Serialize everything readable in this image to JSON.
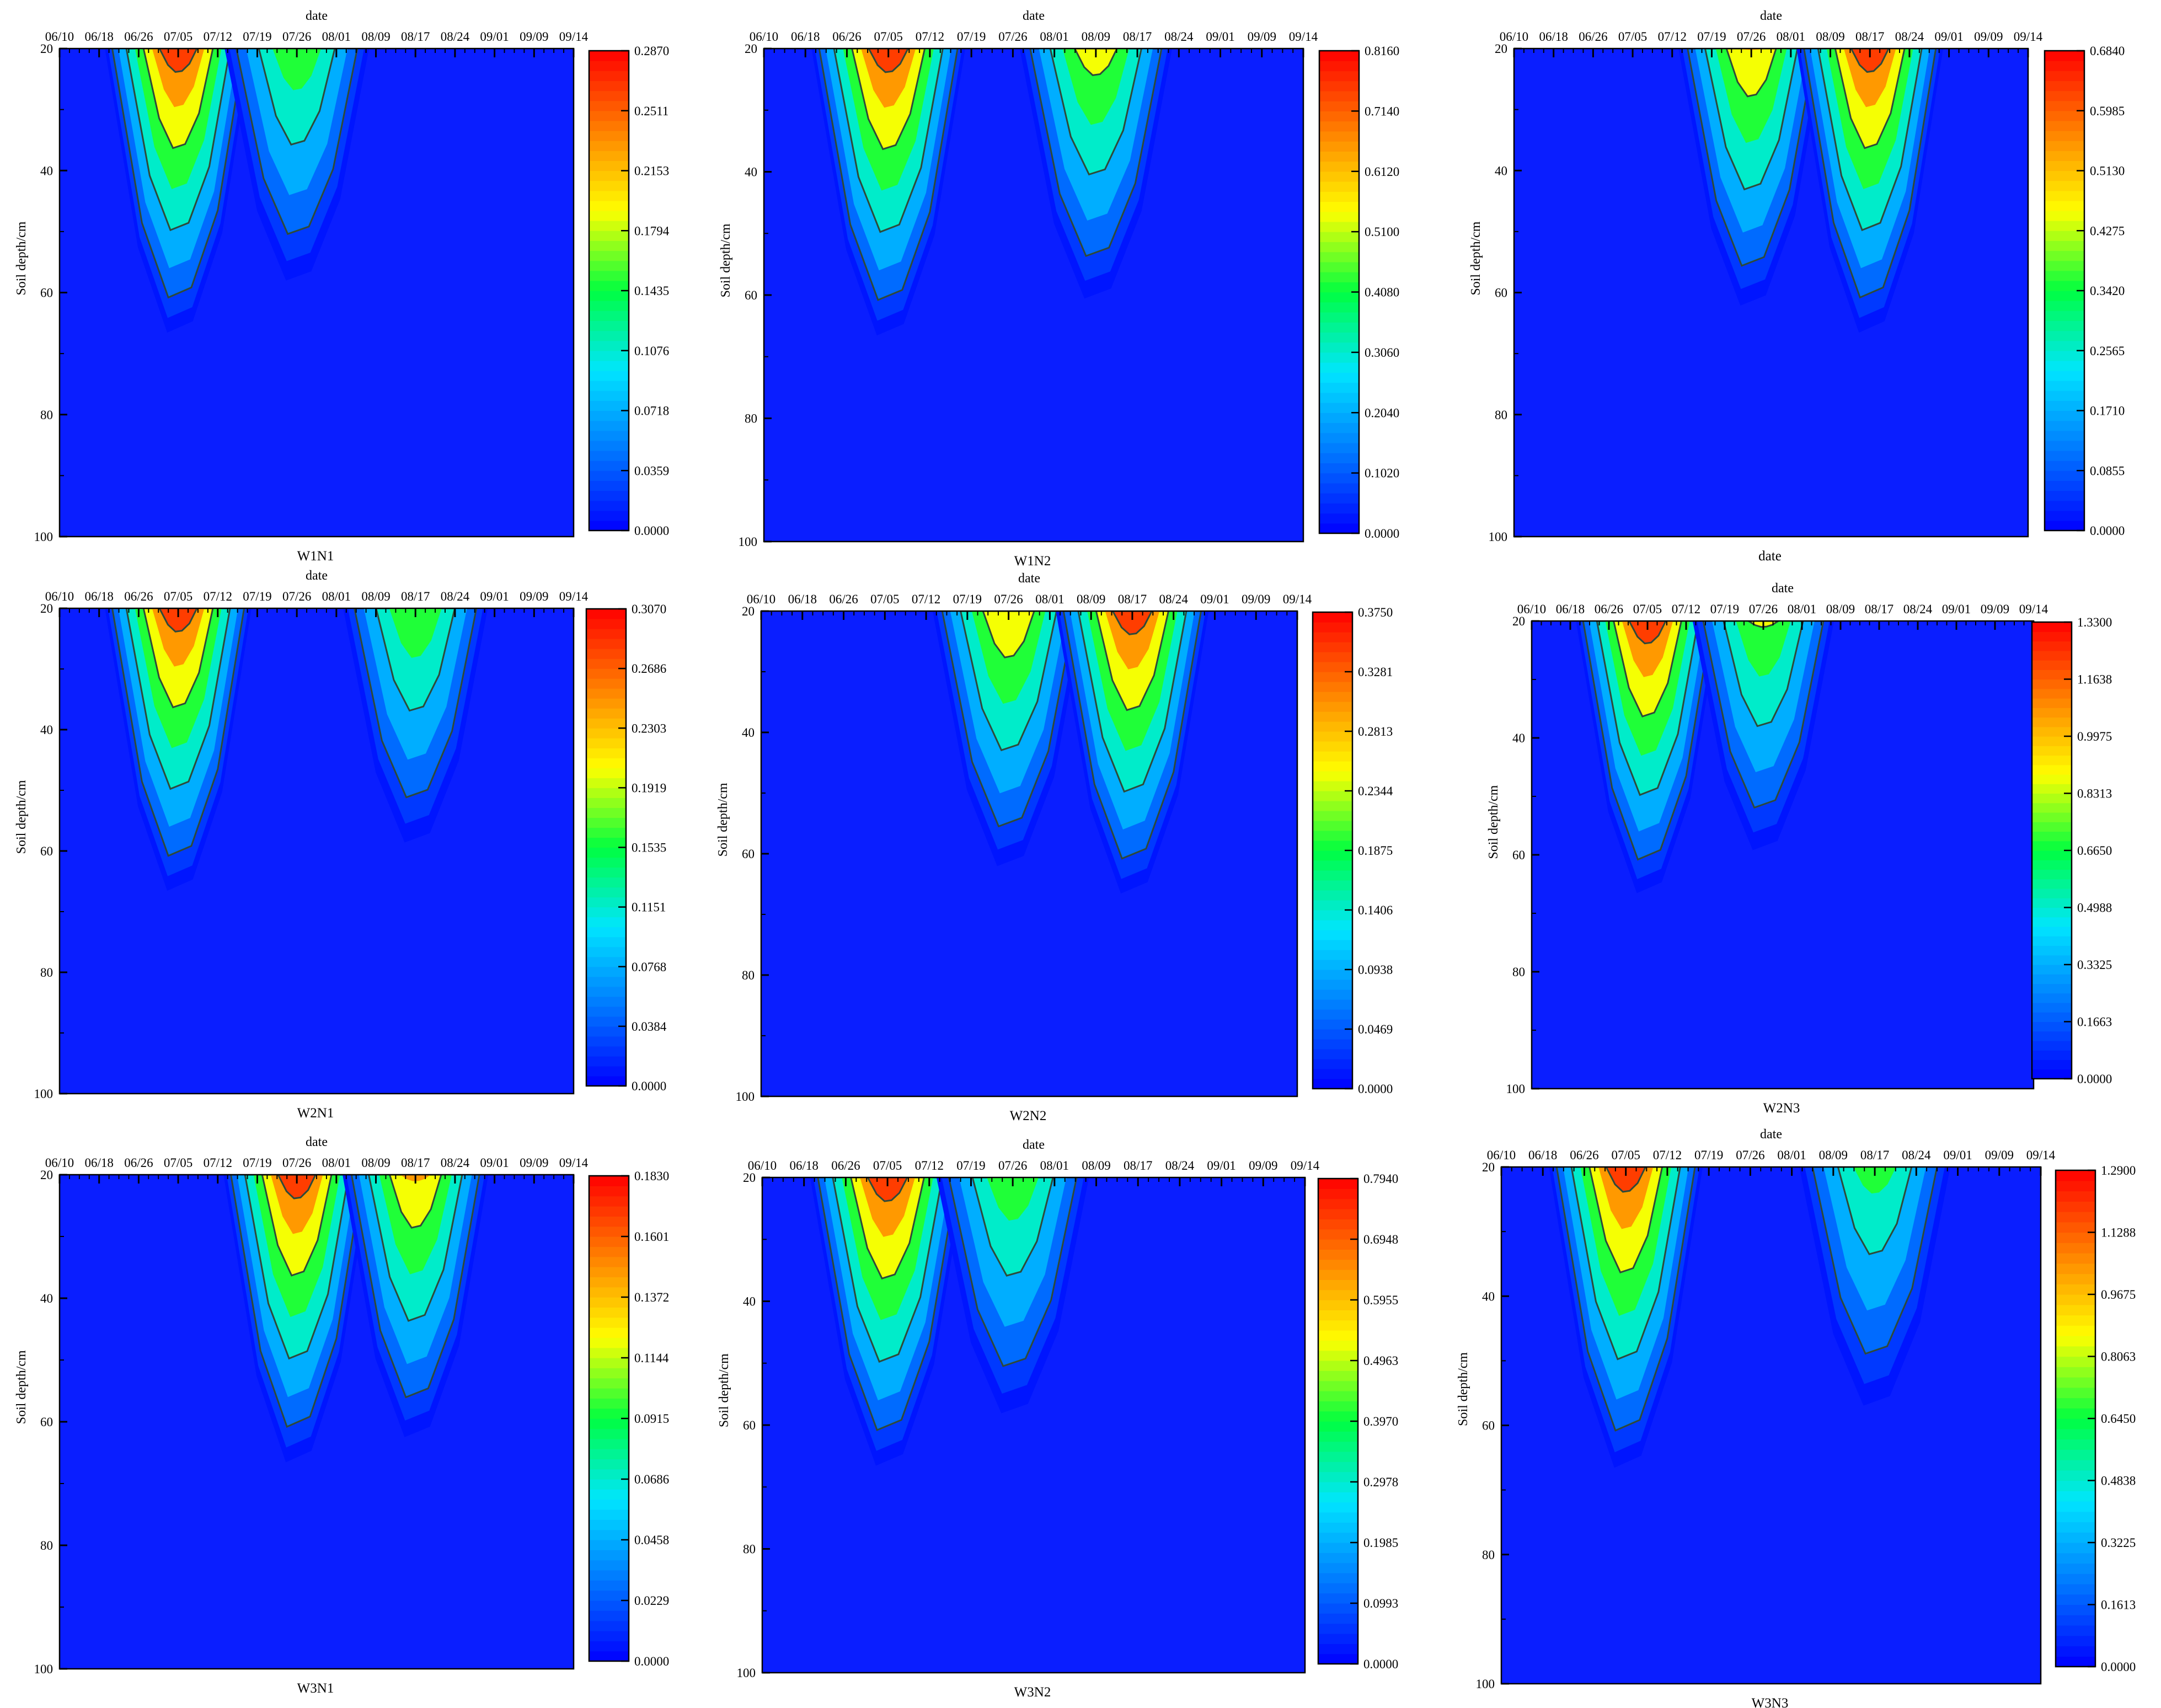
{
  "chart_data": [
    {
      "type": "heatmap",
      "title": "W1N1",
      "xlabel": "date",
      "ylabel": "Soil depth/cm",
      "x_ticks": [
        "06/10",
        "06/18",
        "06/26",
        "07/05",
        "07/12",
        "07/19",
        "07/26",
        "08/01",
        "08/09",
        "08/17",
        "08/24",
        "09/01",
        "09/09",
        "09/14"
      ],
      "y_ticks": [
        "20",
        "40",
        "60",
        "80",
        "100"
      ],
      "ylim": [
        20,
        100
      ],
      "colorbar_range": [
        0,
        0.287
      ],
      "colorbar_ticks": [
        "0.2870",
        "0.2511",
        "0.2153",
        "0.1794",
        "0.1435",
        "0.1076",
        "0.0718",
        "0.0359",
        "0.0000"
      ],
      "hotspots": [
        {
          "date": "07/05",
          "peak_depth": 20,
          "peak_value": 0.287
        },
        {
          "date": "07/26",
          "peak_depth": 20,
          "peak_value": 0.18
        }
      ]
    },
    {
      "type": "heatmap",
      "title": "W1N2",
      "xlabel": "date",
      "ylabel": "Soil depth/cm",
      "x_ticks": [
        "06/10",
        "06/18",
        "06/26",
        "07/05",
        "07/12",
        "07/19",
        "07/26",
        "08/01",
        "08/09",
        "08/17",
        "08/24",
        "09/01",
        "09/09",
        "09/14"
      ],
      "y_ticks": [
        "20",
        "40",
        "60",
        "80",
        "100"
      ],
      "ylim": [
        20,
        100
      ],
      "colorbar_range": [
        0,
        0.816
      ],
      "colorbar_ticks": [
        "0.8160",
        "0.7140",
        "0.6120",
        "0.5100",
        "0.4080",
        "0.3060",
        "0.2040",
        "0.1020",
        "0.0000"
      ],
      "hotspots": [
        {
          "date": "07/05",
          "peak_depth": 20,
          "peak_value": 0.816
        },
        {
          "date": "08/09",
          "peak_depth": 20,
          "peak_value": 0.6
        }
      ]
    },
    {
      "type": "heatmap",
      "title": "date",
      "xlabel": "date",
      "ylabel": "Soil depth/cm",
      "x_ticks": [
        "06/10",
        "06/18",
        "06/26",
        "07/05",
        "07/12",
        "07/19",
        "07/26",
        "08/01",
        "08/09",
        "08/17",
        "08/24",
        "09/01",
        "09/09",
        "09/14"
      ],
      "y_ticks": [
        "20",
        "40",
        "60",
        "80",
        "100"
      ],
      "ylim": [
        20,
        100
      ],
      "colorbar_range": [
        0,
        0.684
      ],
      "colorbar_ticks": [
        "0.6840",
        "0.5985",
        "0.5130",
        "0.4275",
        "0.3420",
        "0.2565",
        "0.1710",
        "0.0855",
        "0.0000"
      ],
      "hotspots": [
        {
          "date": "07/26",
          "peak_depth": 20,
          "peak_value": 0.55
        },
        {
          "date": "08/17",
          "peak_depth": 20,
          "peak_value": 0.684
        }
      ]
    },
    {
      "type": "heatmap",
      "title": "W2N1",
      "xlabel": "date",
      "ylabel": "Soil depth/cm",
      "x_ticks": [
        "06/10",
        "06/18",
        "06/26",
        "07/05",
        "07/12",
        "07/19",
        "07/26",
        "08/01",
        "08/09",
        "08/17",
        "08/24",
        "09/01",
        "09/09",
        "09/14"
      ],
      "y_ticks": [
        "20",
        "40",
        "60",
        "80",
        "100"
      ],
      "ylim": [
        20,
        100
      ],
      "colorbar_range": [
        0,
        0.307
      ],
      "colorbar_ticks": [
        "0.3070",
        "0.2686",
        "0.2303",
        "0.1919",
        "0.1535",
        "0.1151",
        "0.0768",
        "0.0384",
        "0.0000"
      ],
      "hotspots": [
        {
          "date": "07/05",
          "peak_depth": 20,
          "peak_value": 0.307
        },
        {
          "date": "08/17",
          "peak_depth": 20,
          "peak_value": 0.2
        }
      ]
    },
    {
      "type": "heatmap",
      "title": "W2N2",
      "xlabel": "date",
      "ylabel": "Soil depth/cm",
      "x_ticks": [
        "06/10",
        "06/18",
        "06/26",
        "07/05",
        "07/12",
        "07/19",
        "07/26",
        "08/01",
        "08/09",
        "08/17",
        "08/24",
        "09/01",
        "09/09",
        "09/14"
      ],
      "y_ticks": [
        "20",
        "40",
        "60",
        "80",
        "100"
      ],
      "ylim": [
        20,
        100
      ],
      "colorbar_range": [
        0,
        0.375
      ],
      "colorbar_ticks": [
        "0.3750",
        "0.3281",
        "0.2813",
        "0.2344",
        "0.1875",
        "0.1406",
        "0.0938",
        "0.0469",
        "0.0000"
      ],
      "hotspots": [
        {
          "date": "07/26",
          "peak_depth": 20,
          "peak_value": 0.3
        },
        {
          "date": "08/17",
          "peak_depth": 20,
          "peak_value": 0.375
        }
      ]
    },
    {
      "type": "heatmap",
      "title": "W2N3",
      "xlabel": "date",
      "ylabel": "Soil depth/cm",
      "x_ticks": [
        "06/10",
        "06/18",
        "06/26",
        "07/05",
        "07/12",
        "07/19",
        "07/26",
        "08/01",
        "08/09",
        "08/17",
        "08/24",
        "09/01",
        "09/09",
        "09/14"
      ],
      "y_ticks": [
        "20",
        "40",
        "60",
        "80",
        "100"
      ],
      "ylim": [
        20,
        100
      ],
      "colorbar_range": [
        0,
        1.33
      ],
      "colorbar_ticks": [
        "1.3300",
        "1.1638",
        "0.9975",
        "0.8313",
        "0.6650",
        "0.4988",
        "0.3325",
        "0.1663",
        "0.0000"
      ],
      "hotspots": [
        {
          "date": "07/05",
          "peak_depth": 20,
          "peak_value": 1.33
        },
        {
          "date": "07/26",
          "peak_depth": 20,
          "peak_value": 0.9
        }
      ]
    },
    {
      "type": "heatmap",
      "title": "W3N1",
      "xlabel": "date",
      "ylabel": "Soil depth/cm",
      "x_ticks": [
        "06/10",
        "06/18",
        "06/26",
        "07/05",
        "07/12",
        "07/19",
        "07/26",
        "08/01",
        "08/09",
        "08/17",
        "08/24",
        "09/01",
        "09/09",
        "09/14"
      ],
      "y_ticks": [
        "20",
        "40",
        "60",
        "80",
        "100"
      ],
      "ylim": [
        20,
        100
      ],
      "colorbar_range": [
        0,
        0.183
      ],
      "colorbar_ticks": [
        "0.1830",
        "0.1601",
        "0.1372",
        "0.1144",
        "0.0915",
        "0.0686",
        "0.0458",
        "0.0229",
        "0.0000"
      ],
      "hotspots": [
        {
          "date": "07/26",
          "peak_depth": 20,
          "peak_value": 0.183
        },
        {
          "date": "08/17",
          "peak_depth": 20,
          "peak_value": 0.15
        }
      ]
    },
    {
      "type": "heatmap",
      "title": "W3N2",
      "xlabel": "date",
      "ylabel": "Soil depth/cm",
      "x_ticks": [
        "06/10",
        "06/18",
        "06/26",
        "07/05",
        "07/12",
        "07/19",
        "07/26",
        "08/01",
        "08/09",
        "08/17",
        "08/24",
        "09/01",
        "09/09",
        "09/14"
      ],
      "y_ticks": [
        "20",
        "40",
        "60",
        "80",
        "100"
      ],
      "ylim": [
        20,
        100
      ],
      "colorbar_range": [
        0,
        0.794
      ],
      "colorbar_ticks": [
        "0.7940",
        "0.6948",
        "0.5955",
        "0.4963",
        "0.3970",
        "0.2978",
        "0.1985",
        "0.0993",
        "0.0000"
      ],
      "hotspots": [
        {
          "date": "07/05",
          "peak_depth": 20,
          "peak_value": 0.794
        },
        {
          "date": "07/26",
          "peak_depth": 20,
          "peak_value": 0.5
        }
      ]
    },
    {
      "type": "heatmap",
      "title": "W3N3",
      "xlabel": "date",
      "ylabel": "Soil depth/cm",
      "x_ticks": [
        "06/10",
        "06/18",
        "06/26",
        "07/05",
        "07/12",
        "07/19",
        "07/26",
        "08/01",
        "08/09",
        "08/17",
        "08/24",
        "09/01",
        "09/09",
        "09/14"
      ],
      "y_ticks": [
        "20",
        "40",
        "60",
        "80",
        "100"
      ],
      "ylim": [
        20,
        100
      ],
      "colorbar_range": [
        0,
        1.29
      ],
      "colorbar_ticks": [
        "1.2900",
        "1.1288",
        "0.9675",
        "0.8063",
        "0.6450",
        "0.4838",
        "0.3225",
        "0.1613",
        "0.0000"
      ],
      "hotspots": [
        {
          "date": "07/05",
          "peak_depth": 20,
          "peak_value": 1.29
        },
        {
          "date": "08/17",
          "peak_depth": 20,
          "peak_value": 0.75
        }
      ]
    }
  ],
  "colors": {
    "background_low": "#0a1eff",
    "colormap": [
      "#0000ff",
      "#0077ff",
      "#00e5ff",
      "#00ff40",
      "#ffff00",
      "#ff8000",
      "#ff0000"
    ],
    "contour_line": "#2e4a3a",
    "contour_outer": "#7a7a7a"
  }
}
